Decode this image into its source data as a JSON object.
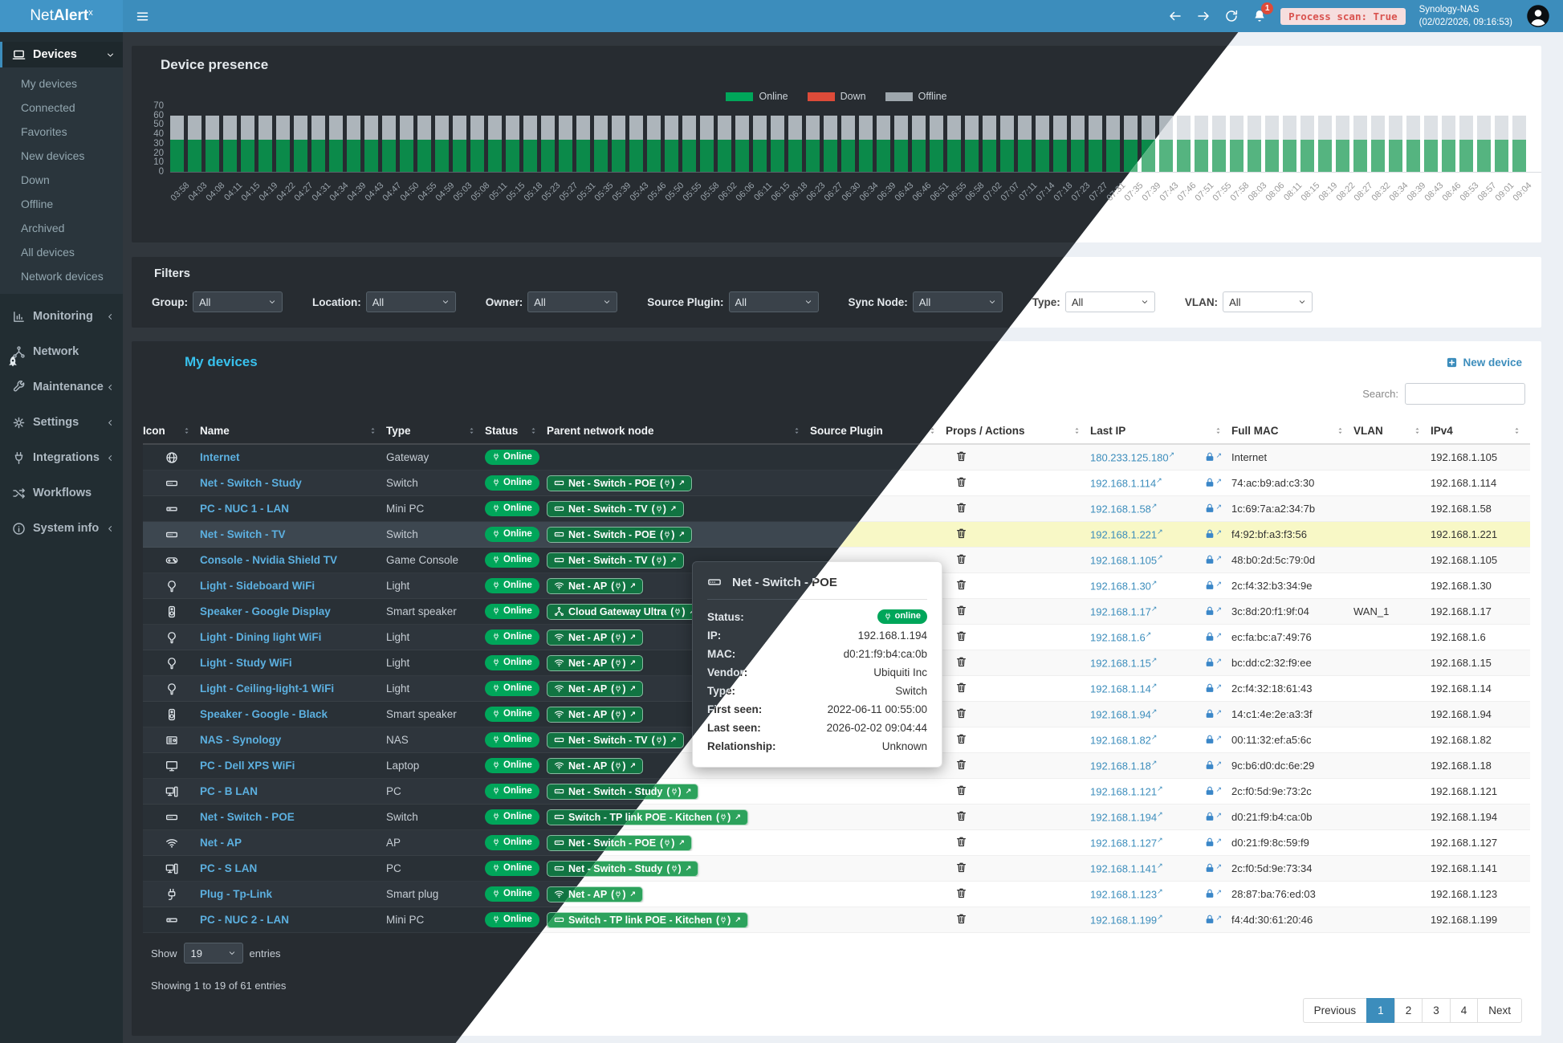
{
  "topbar": {
    "logo_text_regular": "Net",
    "logo_text_bold": "Alert",
    "logo_sup": "x",
    "nav_icons": [
      "menu-bars-icon",
      "arrow-left-icon",
      "arrow-right-icon",
      "refresh-icon",
      "bell-icon"
    ],
    "bell_badge": "1",
    "process_scan": "Process scan: True",
    "server_name": "Synology-NAS",
    "server_time": "(02/02/2026, 09:16:53)"
  },
  "sidebar": {
    "sections": [
      {
        "label": "Devices",
        "icon": "laptop",
        "chevron": "down",
        "active": true,
        "children": [
          "My devices",
          "Connected",
          "Favorites",
          "New devices",
          "Down",
          "Offline",
          "Archived",
          "All devices",
          "Network devices"
        ]
      },
      {
        "label": "Monitoring",
        "icon": "chart-bars",
        "chevron": "left"
      },
      {
        "label": "Network",
        "icon": "hub"
      },
      {
        "label": "Maintenance",
        "icon": "wrench",
        "chevron": "left"
      },
      {
        "label": "Settings",
        "icon": "gear",
        "chevron": "left"
      },
      {
        "label": "Integrations",
        "icon": "plug",
        "chevron": "left"
      },
      {
        "label": "Workflows",
        "icon": "shuffle"
      },
      {
        "label": "System info",
        "icon": "info",
        "chevron": "left"
      }
    ]
  },
  "chart_data": {
    "type": "bar",
    "stacked": true,
    "title": "Device presence",
    "legend": [
      {
        "label": "Online",
        "color": "#00a65a"
      },
      {
        "label": "Down",
        "color": "#dd4b39"
      },
      {
        "label": "Offline",
        "color": "#9ea7ad"
      }
    ],
    "legend_position": "top-center",
    "ylim": [
      0,
      70
    ],
    "y_ticks": [
      0,
      10,
      20,
      30,
      40,
      50,
      60,
      70
    ],
    "bar_count": 77,
    "series": [
      {
        "name": "Online",
        "color": "#00a65a",
        "value_per_bar": 34
      },
      {
        "name": "Down",
        "color": "#dd4b39",
        "value_per_bar": 0
      },
      {
        "name": "Offline",
        "color": "#9ea7ad",
        "value_per_bar": 26
      }
    ],
    "x_labels": [
      "03:58",
      "04:03",
      "04:08",
      "04:11",
      "04:15",
      "04:19",
      "04:22",
      "04:27",
      "04:31",
      "04:34",
      "04:39",
      "04:43",
      "04:47",
      "04:50",
      "04:55",
      "04:59",
      "05:03",
      "05:08",
      "05:11",
      "05:15",
      "05:18",
      "05:23",
      "05:27",
      "05:31",
      "05:35",
      "05:39",
      "05:43",
      "05:46",
      "05:50",
      "05:55",
      "05:58",
      "06:02",
      "06:06",
      "06:11",
      "06:15",
      "06:18",
      "06:23",
      "06:27",
      "06:30",
      "06:34",
      "06:39",
      "06:43",
      "06:46",
      "06:51",
      "06:55",
      "06:58",
      "07:02",
      "07:07",
      "07:11",
      "07:14",
      "07:18",
      "07:23",
      "07:27",
      "07:31",
      "07:35",
      "07:39",
      "07:43",
      "07:46",
      "07:51",
      "07:55",
      "07:58",
      "08:03",
      "08:06",
      "08:11",
      "08:15",
      "08:19",
      "08:22",
      "08:27",
      "08:32",
      "08:34",
      "08:39",
      "08:43",
      "08:46",
      "08:53",
      "08:57",
      "09:01",
      "09:04"
    ]
  },
  "filters": {
    "title": "Filters",
    "items": [
      {
        "id": "group",
        "label": "Group:",
        "value": "All"
      },
      {
        "id": "location",
        "label": "Location:",
        "value": "All"
      },
      {
        "id": "owner",
        "label": "Owner:",
        "value": "All"
      },
      {
        "id": "source-plugin",
        "label": "Source Plugin:",
        "value": "All"
      },
      {
        "id": "sync-node",
        "label": "Sync Node:",
        "value": "All"
      },
      {
        "id": "type",
        "label": "Type:",
        "value": "All"
      },
      {
        "id": "vlan",
        "label": "VLAN:",
        "value": "All"
      }
    ]
  },
  "devices": {
    "title": "My devices",
    "new_device_label": "New device",
    "search_label": "Search:",
    "columns": [
      "Icon",
      "Name",
      "Type",
      "Status",
      "Parent network node",
      "Source Plugin",
      "Props / Actions",
      "Last IP",
      "Full MAC",
      "VLAN",
      "IPv4"
    ],
    "rows": [
      {
        "icon": "globe",
        "name": "Internet",
        "type": "Gateway",
        "status": "Online",
        "parent": null,
        "source_plugin": "",
        "last_ip": "180.233.125.180",
        "full_mac": "Internet",
        "vlan": "",
        "ipv4": "192.168.1.105",
        "highlight": false
      },
      {
        "icon": "switch",
        "name": "Net - Switch - Study",
        "type": "Switch",
        "status": "Online",
        "parent": {
          "icon": "switch",
          "label": "Net - Switch - POE"
        },
        "source_plugin": "",
        "last_ip": "192.168.1.114",
        "full_mac": "74:ac:b9:ad:c3:30",
        "vlan": "",
        "ipv4": "192.168.1.114",
        "highlight": false
      },
      {
        "icon": "minipc",
        "name": "PC - NUC 1 - LAN",
        "type": "Mini PC",
        "status": "Online",
        "parent": {
          "icon": "switch",
          "label": "Net - Switch - TV"
        },
        "source_plugin": "",
        "last_ip": "192.168.1.58",
        "full_mac": "1c:69:7a:a2:34:7b",
        "vlan": "",
        "ipv4": "192.168.1.58",
        "highlight": false
      },
      {
        "icon": "switch",
        "name": "Net - Switch - TV",
        "type": "Switch",
        "status": "Online",
        "parent": {
          "icon": "switch",
          "label": "Net - Switch - POE"
        },
        "source_plugin": "",
        "last_ip": "192.168.1.221",
        "full_mac": "f4:92:bf:a3:f3:56",
        "vlan": "",
        "ipv4": "192.168.1.221",
        "highlight": true
      },
      {
        "icon": "gamepad",
        "name": "Console - Nvidia Shield TV",
        "type": "Game Console",
        "status": "Online",
        "parent": {
          "icon": "switch",
          "label": "Net - Switch - TV"
        },
        "source_plugin": "",
        "last_ip": "192.168.1.105",
        "full_mac": "48:b0:2d:5c:79:0d",
        "vlan": "",
        "ipv4": "192.168.1.105",
        "highlight": false
      },
      {
        "icon": "bulb",
        "name": "Light - Sideboard WiFi",
        "type": "Light",
        "status": "Online",
        "parent": {
          "icon": "wifi",
          "label": "Net - AP"
        },
        "source_plugin": "",
        "last_ip": "192.168.1.30",
        "full_mac": "2c:f4:32:b3:34:9e",
        "vlan": "",
        "ipv4": "192.168.1.30",
        "highlight": false
      },
      {
        "icon": "speaker",
        "name": "Speaker - Google Display",
        "type": "Smart speaker",
        "status": "Online",
        "parent": {
          "icon": "hub",
          "label": "Cloud Gateway Ultra"
        },
        "source_plugin": "",
        "last_ip": "192.168.1.17",
        "full_mac": "3c:8d:20:f1:9f:04",
        "vlan": "WAN_1",
        "ipv4": "192.168.1.17",
        "highlight": false
      },
      {
        "icon": "bulb",
        "name": "Light - Dining light WiFi",
        "type": "Light",
        "status": "Online",
        "parent": {
          "icon": "wifi",
          "label": "Net - AP"
        },
        "source_plugin": "",
        "last_ip": "192.168.1.6",
        "full_mac": "ec:fa:bc:a7:49:76",
        "vlan": "",
        "ipv4": "192.168.1.6",
        "highlight": false
      },
      {
        "icon": "bulb",
        "name": "Light - Study WiFi",
        "type": "Light",
        "status": "Online",
        "parent": {
          "icon": "wifi",
          "label": "Net - AP"
        },
        "source_plugin": "",
        "last_ip": "192.168.1.15",
        "full_mac": "bc:dd:c2:32:f9:ee",
        "vlan": "",
        "ipv4": "192.168.1.15",
        "highlight": false
      },
      {
        "icon": "bulb",
        "name": "Light - Ceiling-light-1 WiFi",
        "type": "Light",
        "status": "Online",
        "parent": {
          "icon": "wifi",
          "label": "Net - AP"
        },
        "source_plugin": "",
        "last_ip": "192.168.1.14",
        "full_mac": "2c:f4:32:18:61:43",
        "vlan": "",
        "ipv4": "192.168.1.14",
        "highlight": false
      },
      {
        "icon": "speaker",
        "name": "Speaker - Google - Black",
        "type": "Smart speaker",
        "status": "Online",
        "parent": {
          "icon": "wifi",
          "label": "Net - AP"
        },
        "source_plugin": "",
        "last_ip": "192.168.1.94",
        "full_mac": "14:c1:4e:2e:a3:3f",
        "vlan": "",
        "ipv4": "192.168.1.94",
        "highlight": false
      },
      {
        "icon": "nas",
        "name": "NAS - Synology",
        "type": "NAS",
        "status": "Online",
        "parent": {
          "icon": "switch",
          "label": "Net - Switch - TV"
        },
        "source_plugin": "",
        "last_ip": "192.168.1.82",
        "full_mac": "00:11:32:ef:a5:6c",
        "vlan": "",
        "ipv4": "192.168.1.82",
        "highlight": false
      },
      {
        "icon": "monitor",
        "name": "PC - Dell XPS WiFi",
        "type": "Laptop",
        "status": "Online",
        "parent": {
          "icon": "wifi",
          "label": "Net - AP"
        },
        "source_plugin": "",
        "last_ip": "192.168.1.18",
        "full_mac": "9c:b6:d0:dc:6e:29",
        "vlan": "",
        "ipv4": "192.168.1.18",
        "highlight": false
      },
      {
        "icon": "pc",
        "name": "PC - B LAN",
        "type": "PC",
        "status": "Online",
        "parent": {
          "icon": "switch",
          "label": "Net - Switch - Study"
        },
        "source_plugin": "",
        "last_ip": "192.168.1.121",
        "full_mac": "2c:f0:5d:9e:73:2c",
        "vlan": "",
        "ipv4": "192.168.1.121",
        "highlight": false
      },
      {
        "icon": "switch",
        "name": "Net - Switch - POE",
        "type": "Switch",
        "status": "Online",
        "parent": {
          "icon": "switch",
          "label": "Switch - TP link POE - Kitchen"
        },
        "source_plugin": "",
        "last_ip": "192.168.1.194",
        "full_mac": "d0:21:f9:b4:ca:0b",
        "vlan": "",
        "ipv4": "192.168.1.194",
        "highlight": false
      },
      {
        "icon": "wifi",
        "name": "Net - AP",
        "type": "AP",
        "status": "Online",
        "parent": {
          "icon": "switch",
          "label": "Net - Switch - POE"
        },
        "source_plugin": "",
        "last_ip": "192.168.1.127",
        "full_mac": "d0:21:f9:8c:59:f9",
        "vlan": "",
        "ipv4": "192.168.1.127",
        "highlight": false
      },
      {
        "icon": "pc",
        "name": "PC - S LAN",
        "type": "PC",
        "status": "Online",
        "parent": {
          "icon": "switch",
          "label": "Net - Switch - Study"
        },
        "source_plugin": "",
        "last_ip": "192.168.1.141",
        "full_mac": "2c:f0:5d:9e:73:34",
        "vlan": "",
        "ipv4": "192.168.1.141",
        "highlight": false
      },
      {
        "icon": "smartplug",
        "name": "Plug - Tp-Link",
        "type": "Smart plug",
        "status": "Online",
        "parent": {
          "icon": "wifi",
          "label": "Net - AP"
        },
        "source_plugin": "",
        "last_ip": "192.168.1.123",
        "full_mac": "28:87:ba:76:ed:03",
        "vlan": "",
        "ipv4": "192.168.1.123",
        "highlight": false
      },
      {
        "icon": "minipc",
        "name": "PC - NUC 2 - LAN",
        "type": "Mini PC",
        "status": "Online",
        "parent": {
          "icon": "switch",
          "label": "Switch - TP link POE - Kitchen"
        },
        "source_plugin": "",
        "last_ip": "192.168.1.199",
        "full_mac": "f4:4d:30:61:20:46",
        "vlan": "",
        "ipv4": "192.168.1.199",
        "highlight": false
      }
    ],
    "show_label": "Show",
    "entries_value": "19",
    "entries_label": "entries",
    "summary": "Showing 1 to 19 of 61 entries",
    "pagination": {
      "prev": "Previous",
      "pages": [
        "1",
        "2",
        "3",
        "4"
      ],
      "active": "1",
      "next": "Next"
    }
  },
  "tooltip": {
    "icon": "switch",
    "title": "Net - Switch - POE",
    "fields": [
      {
        "label": "Status:",
        "value": "online",
        "badge": true
      },
      {
        "label": "IP:",
        "value": "192.168.1.194"
      },
      {
        "label": "MAC:",
        "value": "d0:21:f9:b4:ca:0b"
      },
      {
        "label": "Vendor:",
        "value": "Ubiquiti Inc"
      },
      {
        "label": "Type:",
        "value": "Switch"
      },
      {
        "label": "First seen:",
        "value": "2022-06-11 00:55:00"
      },
      {
        "label": "Last seen:",
        "value": "2026-02-02 09:04:44"
      },
      {
        "label": "Relationship:",
        "value": "Unknown"
      }
    ]
  },
  "colors": {
    "brand_blue": "#3c8dbc",
    "online_green": "#00a65a",
    "down_red": "#dd4b39",
    "offline_gray": "#9ea7ad",
    "highlight_row_yellow": "#f8f8c6",
    "sidebar_dark": "#222d32",
    "dark_card": "#272c31",
    "light_page": "#ecf0f5"
  }
}
